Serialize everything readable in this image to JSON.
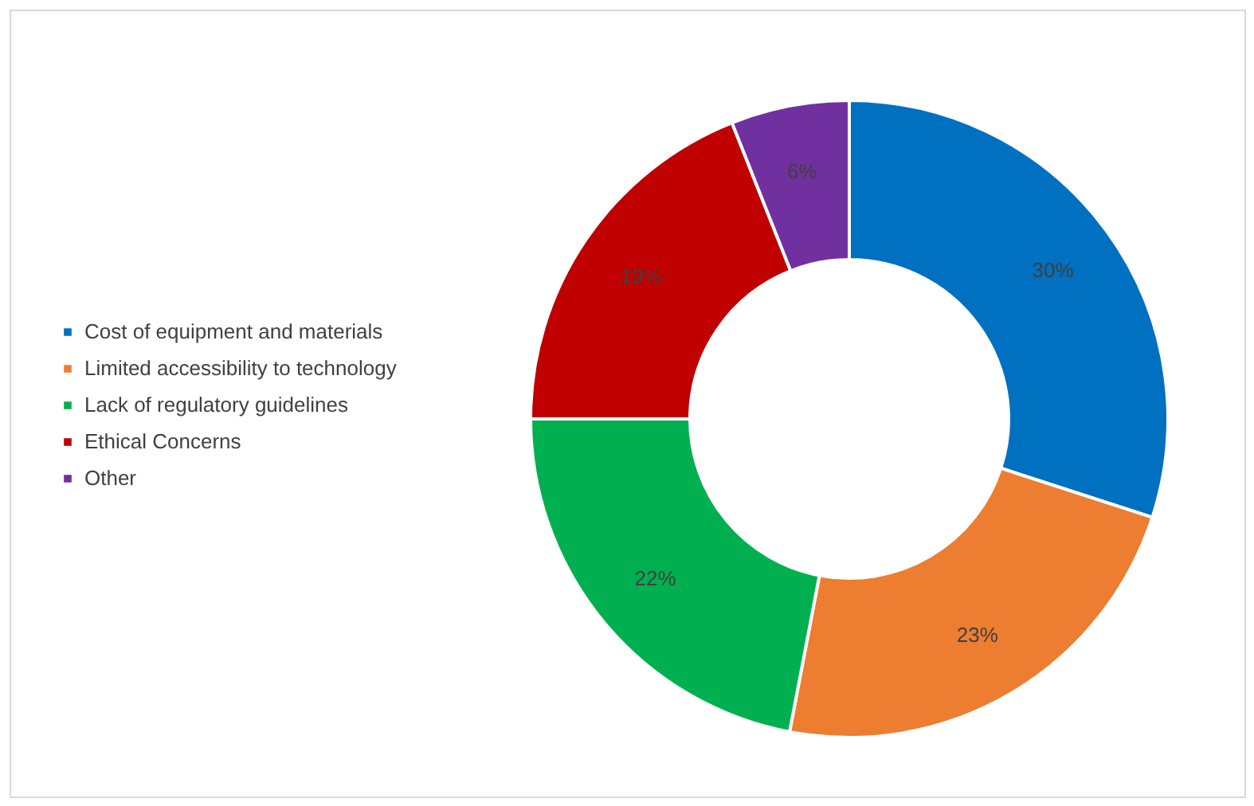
{
  "chart_data": {
    "type": "donut",
    "categories": [
      "Cost of equipment and materials",
      "Limited accessibility to technology",
      "Lack of regulatory guidelines",
      "Ethical Concerns",
      "Other"
    ],
    "values": [
      30,
      23,
      22,
      19,
      6
    ],
    "colors": [
      "#0070c0",
      "#ed7d31",
      "#00b050",
      "#c00000",
      "#7030a0"
    ],
    "value_labels": [
      "30%",
      "23%",
      "22%",
      "19%",
      "6%"
    ],
    "legend": "left"
  }
}
